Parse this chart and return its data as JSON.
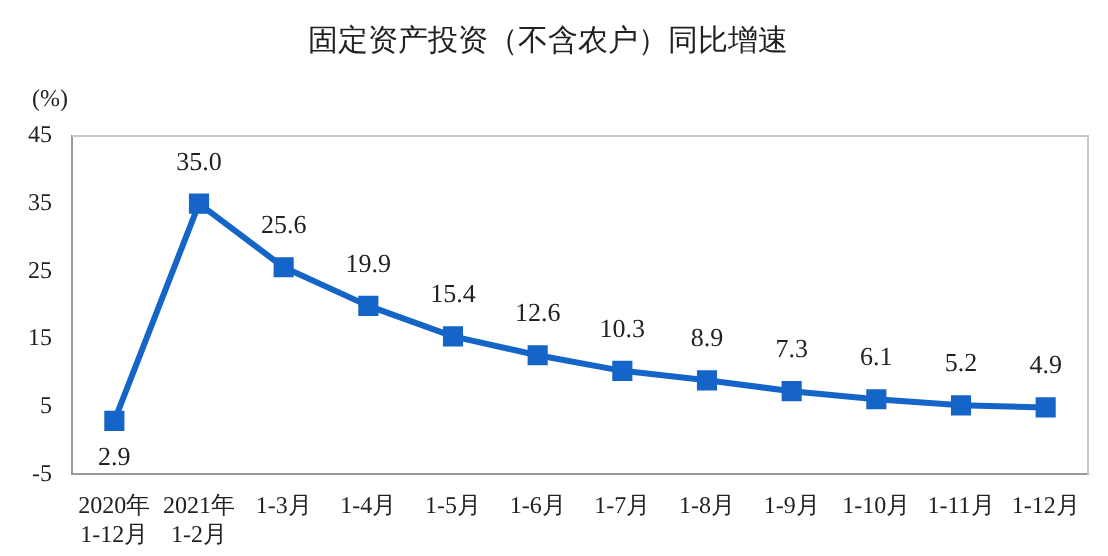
{
  "chart_data": {
    "type": "line",
    "title": "固定资产投资（不含农户）同比增速",
    "ylabel": "(%)",
    "categories": [
      "2020年\n1-12月",
      "2021年\n1-2月",
      "1-3月",
      "1-4月",
      "1-5月",
      "1-6月",
      "1-7月",
      "1-8月",
      "1-9月",
      "1-10月",
      "1-11月",
      "1-12月"
    ],
    "series": [
      {
        "color": "#1565c8",
        "values": [
          2.9,
          35.0,
          25.6,
          19.9,
          15.4,
          12.6,
          10.3,
          8.9,
          7.3,
          6.1,
          5.2,
          4.9
        ],
        "value_labels": [
          "2.9",
          "35.0",
          "25.6",
          "19.9",
          "15.4",
          "12.6",
          "10.3",
          "8.9",
          "7.3",
          "6.1",
          "5.2",
          "4.9"
        ]
      }
    ],
    "ylim": [
      -5,
      45
    ],
    "yticks": [
      -5,
      5,
      15,
      25,
      35,
      45
    ],
    "grid": false,
    "legend": false,
    "marker": "square",
    "line_style": "solid"
  }
}
